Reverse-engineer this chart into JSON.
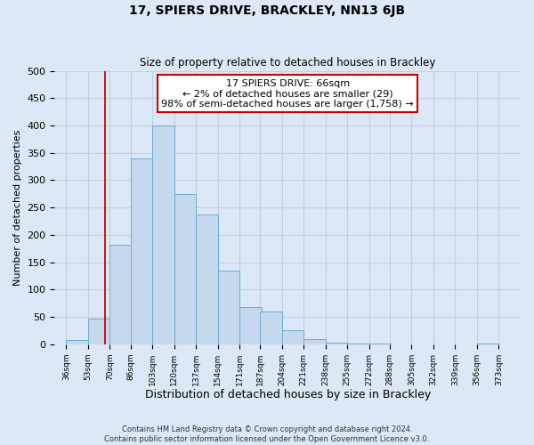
{
  "title": "17, SPIERS DRIVE, BRACKLEY, NN13 6JB",
  "subtitle": "Size of property relative to detached houses in Brackley",
  "xlabel": "Distribution of detached houses by size in Brackley",
  "ylabel": "Number of detached properties",
  "footer_line1": "Contains HM Land Registry data © Crown copyright and database right 2024.",
  "footer_line2": "Contains public sector information licensed under the Open Government Licence v3.0.",
  "annotation_title": "17 SPIERS DRIVE: 66sqm",
  "annotation_line2": "← 2% of detached houses are smaller (29)",
  "annotation_line3": "98% of semi-detached houses are larger (1,758) →",
  "bar_left_edges": [
    36,
    53,
    70,
    86,
    103,
    120,
    137,
    154,
    171,
    187,
    204,
    221,
    238,
    255,
    272,
    288,
    305,
    322,
    339,
    356
  ],
  "bar_widths": [
    17,
    17,
    17,
    17,
    17,
    17,
    17,
    17,
    17,
    17,
    17,
    17,
    17,
    17,
    17,
    17,
    17,
    17,
    17,
    17
  ],
  "bar_heights": [
    8,
    46,
    182,
    340,
    400,
    275,
    238,
    135,
    68,
    60,
    25,
    10,
    3,
    1,
    1,
    0,
    0,
    0,
    0,
    2
  ],
  "bar_color": "#c5d8ed",
  "bar_edge_color": "#6baed6",
  "tick_labels": [
    "36sqm",
    "53sqm",
    "70sqm",
    "86sqm",
    "103sqm",
    "120sqm",
    "137sqm",
    "154sqm",
    "171sqm",
    "187sqm",
    "204sqm",
    "221sqm",
    "238sqm",
    "255sqm",
    "272sqm",
    "288sqm",
    "305sqm",
    "322sqm",
    "339sqm",
    "356sqm",
    "373sqm"
  ],
  "tick_positions": [
    36,
    53,
    70,
    86,
    103,
    120,
    137,
    154,
    171,
    187,
    204,
    221,
    238,
    255,
    272,
    288,
    305,
    322,
    339,
    356,
    373
  ],
  "ylim": [
    0,
    500
  ],
  "xlim": [
    27,
    390
  ],
  "red_line_x": 66,
  "grid_color": "#c0cfe0",
  "bg_color": "#dce8f5",
  "annotation_box_color": "#ffffff",
  "annotation_box_edge_color": "#cc0000",
  "red_line_color": "#cc0000",
  "yticks": [
    0,
    50,
    100,
    150,
    200,
    250,
    300,
    350,
    400,
    450,
    500
  ]
}
